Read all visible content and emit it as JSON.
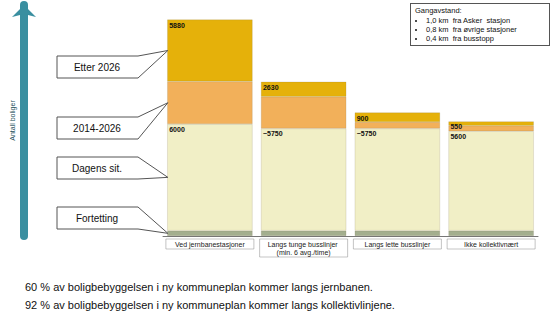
{
  "chart_data": {
    "type": "bar",
    "stacked": true,
    "categories": [
      "Ved jernbanestasjoner",
      "Langs tunge busslinjer (min. 6 avg./time)",
      "Langs lette busslinjer",
      "Ikke kollektivnært"
    ],
    "y_label": "Antall boliger",
    "ylim": [
      0,
      13000
    ],
    "tick_labels": "x",
    "grid": false,
    "legend": "left",
    "data_labels": true,
    "series": [
      {
        "name": "Fortetting",
        "color": "#a3ae8e",
        "values": [
          300,
          300,
          300,
          300
        ]
      },
      {
        "name": "Dagens sit.",
        "color": "#f1efc6",
        "values": [
          6000,
          5750,
          5750,
          5600
        ],
        "value_labels": [
          "6000",
          "~5750",
          "~5750",
          "5600"
        ]
      },
      {
        "name": "2014-2026",
        "color": "#f2b05a",
        "values": [
          2400,
          1790,
          360,
          310
        ]
      },
      {
        "name": "Etter 2026",
        "color": "#e5b10a",
        "values": [
          3480,
          840,
          540,
          240
        ]
      }
    ],
    "totals": [
      5880,
      2630,
      900,
      550
    ],
    "note_box": {
      "title": "Gangavstand:",
      "items": [
        "1,0 km  fra Asker  stasjon",
        "0,8 km  fra øvrige stasjoner",
        "0,4 km  fra busstopp"
      ]
    },
    "annotations": [
      "60 % av boligbebyggelsen i ny kommuneplan kommer langs jernbanen.",
      "92 % av boligbebyggelsen i ny kommuneplan kommer langs kollektivlinjene."
    ]
  }
}
